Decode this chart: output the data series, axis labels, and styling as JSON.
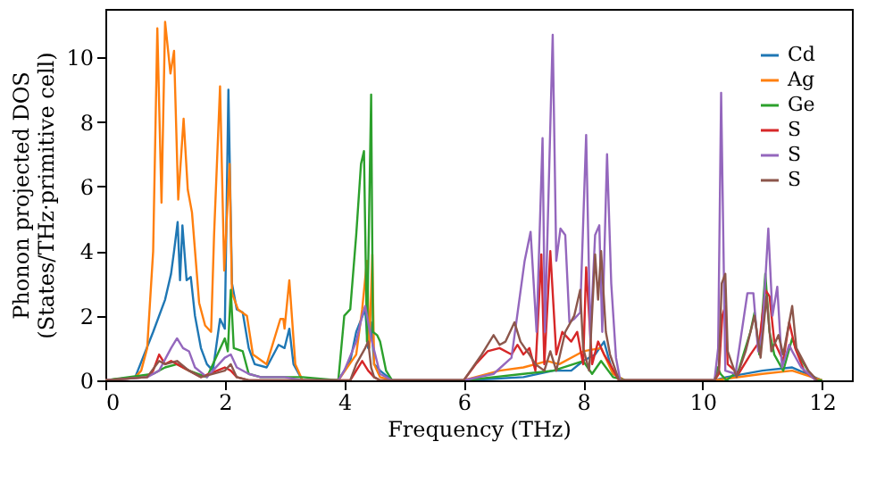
{
  "chart_data": {
    "type": "line",
    "xlabel": "Frequency (THz)",
    "ylabel": "Phonon projected DOS\n(States/THz·primitive cell)",
    "xlim": [
      0,
      12.5
    ],
    "ylim": [
      0,
      11.5
    ],
    "xticks": [
      0,
      2,
      4,
      6,
      8,
      10,
      12
    ],
    "yticks": [
      0,
      2,
      4,
      6,
      8,
      10
    ],
    "grid": false,
    "legend": "top right",
    "marker": "none",
    "line_style": "solid",
    "series": [
      {
        "name": "Cd",
        "color": "#1f77b4",
        "x": [
          0,
          0.5,
          0.8,
          1.0,
          1.1,
          1.15,
          1.21,
          1.25,
          1.29,
          1.36,
          1.43,
          1.5,
          1.6,
          1.7,
          1.8,
          1.92,
          2.0,
          2.06,
          2.12,
          2.2,
          2.3,
          2.4,
          2.5,
          2.7,
          2.9,
          3.0,
          3.08,
          3.15,
          3.3,
          3.9,
          4.1,
          4.2,
          4.35,
          4.4,
          4.45,
          4.5,
          4.6,
          4.8,
          6.0,
          6.5,
          7.0,
          7.5,
          7.8,
          8.0,
          8.2,
          8.35,
          8.5,
          8.7,
          10.2,
          10.4,
          11.0,
          11.5,
          12.0
        ],
        "values": [
          0,
          0.1,
          1.5,
          2.5,
          3.3,
          4.0,
          4.9,
          3.1,
          4.8,
          3.1,
          3.2,
          2.0,
          1.0,
          0.5,
          0.3,
          1.9,
          1.6,
          9.0,
          3.0,
          2.2,
          2.1,
          1.0,
          0.5,
          0.4,
          1.1,
          1.0,
          1.6,
          0.5,
          0,
          0,
          0.6,
          1.5,
          2.2,
          1.0,
          1.8,
          0.5,
          0.3,
          0,
          0,
          0.05,
          0.1,
          0.3,
          0.3,
          0.6,
          0.8,
          1.2,
          0.2,
          0,
          0,
          0.1,
          0.3,
          0.4,
          0
        ]
      },
      {
        "name": "Ag",
        "color": "#ff7f0e",
        "x": [
          0,
          0.5,
          0.6,
          0.7,
          0.8,
          0.87,
          0.94,
          1.0,
          1.09,
          1.15,
          1.22,
          1.31,
          1.38,
          1.45,
          1.57,
          1.67,
          1.77,
          1.82,
          1.92,
          1.99,
          2.08,
          2.12,
          2.22,
          2.37,
          2.47,
          2.7,
          2.93,
          2.98,
          3.0,
          3.08,
          3.18,
          3.3,
          3.9,
          4.2,
          4.3,
          4.38,
          4.42,
          4.47,
          4.5,
          4.6,
          4.8,
          6.0,
          6.6,
          7.0,
          7.4,
          7.6,
          8.0,
          8.3,
          8.5,
          8.7,
          10.2,
          11.0,
          11.5,
          12.0
        ],
        "values": [
          0,
          0.1,
          0.3,
          1.0,
          4.0,
          10.9,
          5.5,
          11.1,
          9.5,
          10.2,
          5.6,
          8.1,
          5.9,
          5.2,
          2.4,
          1.7,
          1.5,
          4.5,
          9.1,
          3.4,
          6.7,
          2.7,
          2.2,
          2.0,
          0.8,
          0.5,
          1.9,
          1.9,
          1.6,
          3.1,
          0.5,
          0,
          0,
          0.8,
          2.2,
          3.7,
          1.0,
          3.9,
          0.5,
          0.1,
          0,
          0,
          0.3,
          0.4,
          0.6,
          0.5,
          0.9,
          1.0,
          0.2,
          0,
          0,
          0.2,
          0.3,
          0
        ]
      },
      {
        "name": "Ge",
        "color": "#2ca02c",
        "x": [
          0,
          0.8,
          1.0,
          1.2,
          1.4,
          1.7,
          2.0,
          2.05,
          2.1,
          2.15,
          2.3,
          2.4,
          2.6,
          3.3,
          3.9,
          4.0,
          4.1,
          4.2,
          4.28,
          4.33,
          4.38,
          4.45,
          4.48,
          4.55,
          4.6,
          4.7,
          4.8,
          6.0,
          6.5,
          7.0,
          7.5,
          8.0,
          8.15,
          8.3,
          8.5,
          8.7,
          10.2,
          10.25,
          10.3,
          10.4,
          10.6,
          10.8,
          10.87,
          10.95,
          11.05,
          11.12,
          11.2,
          11.35,
          11.5,
          11.6,
          11.8,
          11.9,
          12.0
        ],
        "values": [
          0,
          0.2,
          0.4,
          0.5,
          0.3,
          0.1,
          1.3,
          0.9,
          2.8,
          1.0,
          0.9,
          0.2,
          0.1,
          0.1,
          0,
          2.0,
          2.2,
          4.5,
          6.7,
          7.1,
          1.2,
          8.85,
          1.5,
          1.4,
          1.2,
          0.3,
          0,
          0,
          0.1,
          0.2,
          0.3,
          0.6,
          0.2,
          0.6,
          0.1,
          0,
          0,
          0.4,
          0.2,
          0,
          0.3,
          1.5,
          2.1,
          0.8,
          3.3,
          1.5,
          0.8,
          0.3,
          1.3,
          0.8,
          0.2,
          0,
          0
        ]
      },
      {
        "name": "S",
        "color": "#d62728",
        "x": [
          0,
          0.7,
          0.8,
          0.9,
          1.0,
          1.1,
          1.2,
          1.4,
          1.6,
          2.0,
          2.1,
          2.2,
          2.4,
          4.1,
          4.2,
          4.3,
          4.4,
          4.5,
          4.6,
          6.0,
          6.2,
          6.4,
          6.6,
          6.8,
          6.9,
          7.0,
          7.1,
          7.2,
          7.3,
          7.35,
          7.45,
          7.55,
          7.65,
          7.8,
          7.9,
          8.0,
          8.05,
          8.15,
          8.25,
          8.35,
          8.45,
          8.6,
          10.2,
          10.27,
          10.33,
          10.38,
          10.42,
          10.6,
          10.8,
          10.95,
          11.05,
          11.12,
          11.2,
          11.35,
          11.45,
          11.55,
          11.7,
          11.9
        ],
        "values": [
          0,
          0.1,
          0.3,
          0.8,
          0.5,
          0.6,
          0.5,
          0.3,
          0.1,
          0.4,
          0.3,
          0.1,
          0,
          0,
          0.3,
          0.6,
          0.3,
          0.1,
          0,
          0,
          0.5,
          0.9,
          1.0,
          0.8,
          1.1,
          0.8,
          1.0,
          0.3,
          3.9,
          0.5,
          4.0,
          0.8,
          1.5,
          1.2,
          1.5,
          0.5,
          3.5,
          0.5,
          1.2,
          0.8,
          0.5,
          0,
          0,
          0.2,
          2.0,
          2.3,
          0.5,
          0.2,
          0.8,
          1.2,
          2.8,
          2.6,
          1.2,
          0.6,
          1.8,
          1.0,
          0.3,
          0
        ]
      },
      {
        "name": "S",
        "color": "#9467bd",
        "x": [
          0,
          0.7,
          0.9,
          1.1,
          1.2,
          1.3,
          1.4,
          1.5,
          1.7,
          2.0,
          2.1,
          2.2,
          2.4,
          2.6,
          3.0,
          3.3,
          3.9,
          4.0,
          4.2,
          4.3,
          4.35,
          4.45,
          4.6,
          4.8,
          6.0,
          6.5,
          6.8,
          7.02,
          7.12,
          7.22,
          7.32,
          7.36,
          7.49,
          7.55,
          7.62,
          7.7,
          7.77,
          7.85,
          7.95,
          8.05,
          8.12,
          8.2,
          8.27,
          8.32,
          8.4,
          8.47,
          8.55,
          8.62,
          10.2,
          10.26,
          10.31,
          10.38,
          10.55,
          10.75,
          10.85,
          10.93,
          11.0,
          11.1,
          11.17,
          11.25,
          11.33,
          11.45,
          11.5,
          11.65,
          11.9
        ],
        "values": [
          0,
          0.1,
          0.3,
          1.0,
          1.3,
          1.0,
          0.9,
          0.4,
          0.1,
          0.7,
          0.8,
          0.4,
          0.2,
          0.1,
          0.1,
          0,
          0,
          0.3,
          1.2,
          2.0,
          2.3,
          1.3,
          0.2,
          0,
          0,
          0.2,
          0.7,
          3.7,
          4.6,
          1.5,
          7.5,
          1.5,
          10.7,
          3.7,
          4.7,
          4.5,
          1.8,
          1.9,
          2.1,
          7.6,
          1.3,
          4.5,
          4.8,
          1.5,
          7.0,
          3.0,
          0.7,
          0,
          0,
          1.0,
          8.9,
          0.3,
          0.2,
          2.7,
          2.7,
          0.9,
          1.5,
          4.7,
          2.0,
          2.9,
          0.4,
          1.1,
          0.9,
          0.4,
          0
        ]
      },
      {
        "name": "S",
        "color": "#8c564b",
        "x": [
          0,
          0.7,
          0.9,
          1.0,
          1.2,
          1.4,
          1.6,
          2.0,
          2.1,
          2.2,
          2.4,
          4.1,
          4.2,
          4.35,
          4.4,
          4.45,
          4.5,
          4.6,
          6.0,
          6.3,
          6.5,
          6.6,
          6.7,
          6.85,
          6.95,
          7.1,
          7.2,
          7.35,
          7.45,
          7.55,
          7.7,
          7.85,
          7.95,
          8.0,
          8.1,
          8.2,
          8.25,
          8.3,
          8.38,
          8.45,
          8.6,
          10.2,
          10.27,
          10.32,
          10.38,
          10.42,
          10.57,
          10.72,
          10.87,
          10.97,
          11.07,
          11.15,
          11.27,
          11.35,
          11.5,
          11.57,
          11.77,
          11.92
        ],
        "values": [
          0,
          0.1,
          0.6,
          0.5,
          0.6,
          0.3,
          0.1,
          0.3,
          0.5,
          0.1,
          0,
          0,
          0.5,
          1.0,
          1.2,
          0.4,
          0.1,
          0,
          0,
          0.8,
          1.4,
          1.1,
          1.2,
          1.8,
          1.2,
          0.8,
          0.5,
          0.3,
          0.9,
          0.3,
          1.5,
          2.0,
          2.8,
          1.0,
          0.3,
          3.9,
          2.5,
          4.0,
          1.5,
          0.8,
          0,
          0,
          0.3,
          3.0,
          3.3,
          0.9,
          0.1,
          0.9,
          2.0,
          0.7,
          2.6,
          0.9,
          1.4,
          0.8,
          2.3,
          1.0,
          0.3,
          0
        ]
      }
    ]
  }
}
